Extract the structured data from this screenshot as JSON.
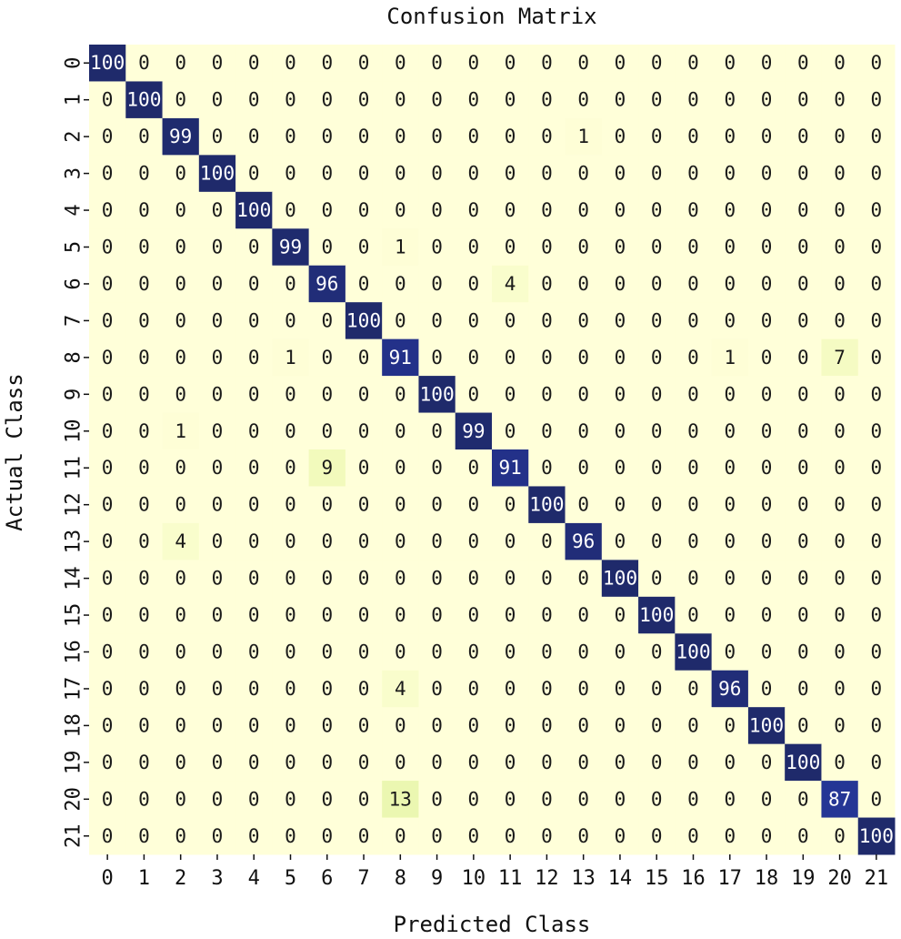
{
  "chart_data": {
    "type": "heatmap",
    "title": "Confusion Matrix",
    "xlabel": "Predicted Class",
    "ylabel": "Actual Class",
    "x_categories": [
      "0",
      "1",
      "2",
      "3",
      "4",
      "5",
      "6",
      "7",
      "8",
      "9",
      "10",
      "11",
      "12",
      "13",
      "14",
      "15",
      "16",
      "17",
      "18",
      "19",
      "20",
      "21"
    ],
    "y_categories": [
      "0",
      "1",
      "2",
      "3",
      "4",
      "5",
      "6",
      "7",
      "8",
      "9",
      "10",
      "11",
      "12",
      "13",
      "14",
      "15",
      "16",
      "17",
      "18",
      "19",
      "20",
      "21"
    ],
    "value_range": [
      0,
      100
    ],
    "colormap": "YlGnBu",
    "colors": {
      "low": "#ffffd9",
      "high": "#1f2a6b",
      "text_dark": "#1a1a1a",
      "text_light": "#ffffff"
    },
    "values": [
      [
        100,
        0,
        0,
        0,
        0,
        0,
        0,
        0,
        0,
        0,
        0,
        0,
        0,
        0,
        0,
        0,
        0,
        0,
        0,
        0,
        0,
        0
      ],
      [
        0,
        100,
        0,
        0,
        0,
        0,
        0,
        0,
        0,
        0,
        0,
        0,
        0,
        0,
        0,
        0,
        0,
        0,
        0,
        0,
        0,
        0
      ],
      [
        0,
        0,
        99,
        0,
        0,
        0,
        0,
        0,
        0,
        0,
        0,
        0,
        0,
        1,
        0,
        0,
        0,
        0,
        0,
        0,
        0,
        0
      ],
      [
        0,
        0,
        0,
        100,
        0,
        0,
        0,
        0,
        0,
        0,
        0,
        0,
        0,
        0,
        0,
        0,
        0,
        0,
        0,
        0,
        0,
        0
      ],
      [
        0,
        0,
        0,
        0,
        100,
        0,
        0,
        0,
        0,
        0,
        0,
        0,
        0,
        0,
        0,
        0,
        0,
        0,
        0,
        0,
        0,
        0
      ],
      [
        0,
        0,
        0,
        0,
        0,
        99,
        0,
        0,
        1,
        0,
        0,
        0,
        0,
        0,
        0,
        0,
        0,
        0,
        0,
        0,
        0,
        0
      ],
      [
        0,
        0,
        0,
        0,
        0,
        0,
        96,
        0,
        0,
        0,
        0,
        4,
        0,
        0,
        0,
        0,
        0,
        0,
        0,
        0,
        0,
        0
      ],
      [
        0,
        0,
        0,
        0,
        0,
        0,
        0,
        100,
        0,
        0,
        0,
        0,
        0,
        0,
        0,
        0,
        0,
        0,
        0,
        0,
        0,
        0
      ],
      [
        0,
        0,
        0,
        0,
        0,
        1,
        0,
        0,
        91,
        0,
        0,
        0,
        0,
        0,
        0,
        0,
        0,
        1,
        0,
        0,
        7,
        0
      ],
      [
        0,
        0,
        0,
        0,
        0,
        0,
        0,
        0,
        0,
        100,
        0,
        0,
        0,
        0,
        0,
        0,
        0,
        0,
        0,
        0,
        0,
        0
      ],
      [
        0,
        0,
        1,
        0,
        0,
        0,
        0,
        0,
        0,
        0,
        99,
        0,
        0,
        0,
        0,
        0,
        0,
        0,
        0,
        0,
        0,
        0
      ],
      [
        0,
        0,
        0,
        0,
        0,
        0,
        9,
        0,
        0,
        0,
        0,
        91,
        0,
        0,
        0,
        0,
        0,
        0,
        0,
        0,
        0,
        0
      ],
      [
        0,
        0,
        0,
        0,
        0,
        0,
        0,
        0,
        0,
        0,
        0,
        0,
        100,
        0,
        0,
        0,
        0,
        0,
        0,
        0,
        0,
        0
      ],
      [
        0,
        0,
        4,
        0,
        0,
        0,
        0,
        0,
        0,
        0,
        0,
        0,
        0,
        96,
        0,
        0,
        0,
        0,
        0,
        0,
        0,
        0
      ],
      [
        0,
        0,
        0,
        0,
        0,
        0,
        0,
        0,
        0,
        0,
        0,
        0,
        0,
        0,
        100,
        0,
        0,
        0,
        0,
        0,
        0,
        0
      ],
      [
        0,
        0,
        0,
        0,
        0,
        0,
        0,
        0,
        0,
        0,
        0,
        0,
        0,
        0,
        0,
        100,
        0,
        0,
        0,
        0,
        0,
        0
      ],
      [
        0,
        0,
        0,
        0,
        0,
        0,
        0,
        0,
        0,
        0,
        0,
        0,
        0,
        0,
        0,
        0,
        100,
        0,
        0,
        0,
        0,
        0
      ],
      [
        0,
        0,
        0,
        0,
        0,
        0,
        0,
        0,
        4,
        0,
        0,
        0,
        0,
        0,
        0,
        0,
        0,
        96,
        0,
        0,
        0,
        0
      ],
      [
        0,
        0,
        0,
        0,
        0,
        0,
        0,
        0,
        0,
        0,
        0,
        0,
        0,
        0,
        0,
        0,
        0,
        0,
        100,
        0,
        0,
        0
      ],
      [
        0,
        0,
        0,
        0,
        0,
        0,
        0,
        0,
        0,
        0,
        0,
        0,
        0,
        0,
        0,
        0,
        0,
        0,
        0,
        100,
        0,
        0
      ],
      [
        0,
        0,
        0,
        0,
        0,
        0,
        0,
        0,
        13,
        0,
        0,
        0,
        0,
        0,
        0,
        0,
        0,
        0,
        0,
        0,
        87,
        0
      ],
      [
        0,
        0,
        0,
        0,
        0,
        0,
        0,
        0,
        0,
        0,
        0,
        0,
        0,
        0,
        0,
        0,
        0,
        0,
        0,
        0,
        0,
        100
      ]
    ]
  }
}
